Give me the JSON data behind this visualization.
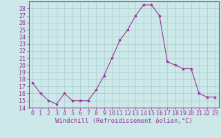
{
  "x": [
    0,
    1,
    2,
    3,
    4,
    5,
    6,
    7,
    8,
    9,
    10,
    11,
    12,
    13,
    14,
    15,
    16,
    17,
    18,
    19,
    20,
    21,
    22,
    23
  ],
  "y": [
    17.5,
    16.0,
    15.0,
    14.5,
    16.0,
    15.0,
    15.0,
    15.0,
    16.5,
    18.5,
    21.0,
    23.5,
    25.0,
    27.0,
    28.5,
    28.5,
    27.0,
    20.5,
    20.0,
    19.5,
    19.5,
    16.0,
    15.5,
    15.5
  ],
  "line_color": "#993399",
  "marker": "*",
  "marker_size": 3,
  "bg_color": "#cce8e8",
  "grid_color": "#aacccc",
  "xlabel": "Windchill (Refroidissement éolien,°C)",
  "ylabel_ticks": [
    14,
    15,
    16,
    17,
    18,
    19,
    20,
    21,
    22,
    23,
    24,
    25,
    26,
    27,
    28
  ],
  "ylim": [
    14,
    29
  ],
  "xlim": [
    -0.5,
    23.5
  ],
  "tick_color": "#993399",
  "axis_label_color": "#993399",
  "font_size_label": 6.5,
  "font_size_tick": 6.0,
  "border_color": "#993399"
}
